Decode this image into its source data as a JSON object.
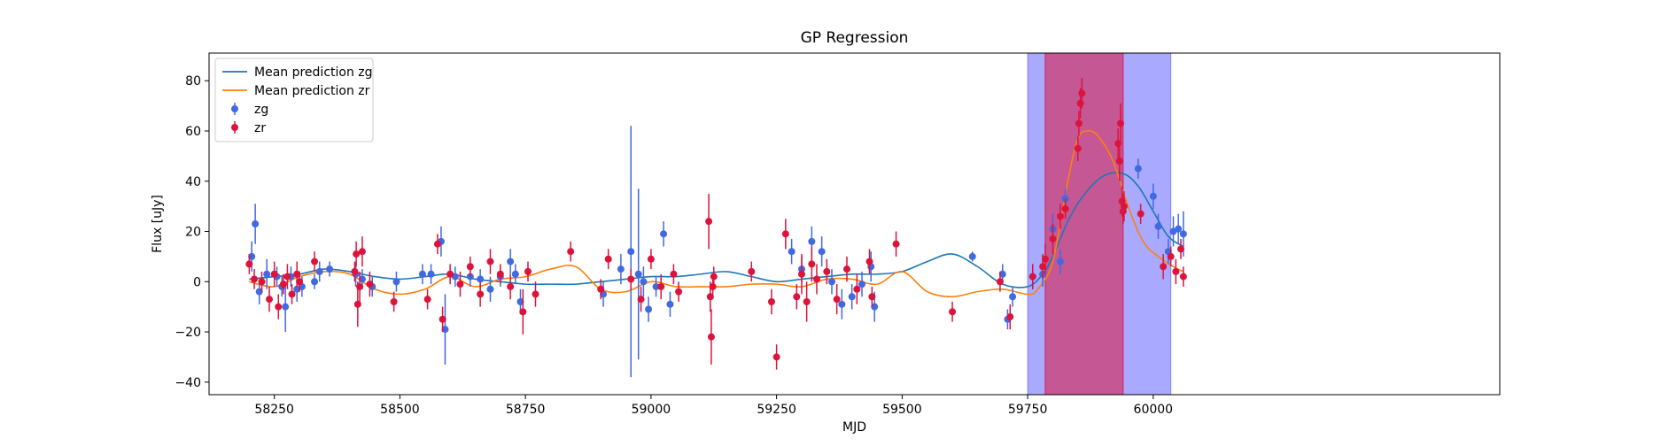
{
  "chart_data": {
    "type": "scatter",
    "title": "GP Regression",
    "xlabel": "MJD",
    "ylabel": "Flux [uJy]",
    "xlim": [
      58120,
      60690
    ],
    "ylim": [
      -45,
      91
    ],
    "xticks": [
      58250,
      58500,
      58750,
      59000,
      59250,
      59500,
      59750,
      60000
    ],
    "xtick_labels": [
      "58250",
      "58500",
      "58750",
      "59000",
      "59250",
      "59500",
      "59750",
      "60000"
    ],
    "yticks": [
      -40,
      -20,
      0,
      20,
      40,
      60,
      80
    ],
    "ytick_labels": [
      "−40",
      "−20",
      "0",
      "20",
      "40",
      "60",
      "80"
    ],
    "grid": false,
    "legend_position": "top-left",
    "legend": [
      {
        "label": "Mean prediction zg",
        "kind": "line",
        "color": "#1f77b4"
      },
      {
        "label": "Mean prediction zr",
        "kind": "line",
        "color": "#ff7f0e"
      },
      {
        "label": "zg",
        "kind": "errorbar",
        "color": "#4169e1"
      },
      {
        "label": "zr",
        "kind": "errorbar",
        "color": "#dc143c"
      }
    ],
    "shaded_regions": [
      {
        "x0": 59750,
        "x1": 60035,
        "color": "#7b7bff",
        "opacity": 0.65
      },
      {
        "x0": 59785,
        "x1": 59940,
        "color": "#dc143c",
        "opacity": 0.55
      }
    ],
    "series": [
      {
        "name": "Mean prediction zg",
        "kind": "line",
        "color": "#1f77b4",
        "x": [
          58200,
          58250,
          58300,
          58350,
          58400,
          58450,
          58500,
          58550,
          58600,
          58650,
          58700,
          58750,
          58800,
          58850,
          58900,
          58950,
          59000,
          59050,
          59100,
          59150,
          59200,
          59250,
          59300,
          59350,
          59400,
          59450,
          59500,
          59550,
          59600,
          59650,
          59700,
          59750,
          59780,
          59800,
          59830,
          59860,
          59900,
          59940,
          59970,
          60000,
          60030,
          60060
        ],
        "y": [
          1,
          2,
          3,
          5,
          4,
          2,
          1,
          2,
          3,
          1,
          0,
          -1,
          -1,
          -1,
          0,
          1,
          2,
          2,
          3,
          4,
          2,
          0,
          1,
          2,
          3,
          3,
          4,
          8,
          11,
          6,
          -1,
          -2,
          3,
          10,
          24,
          34,
          42,
          43,
          38,
          28,
          18,
          14
        ]
      },
      {
        "name": "Mean prediction zr",
        "kind": "line",
        "color": "#ff7f0e",
        "x": [
          58200,
          58250,
          58300,
          58350,
          58400,
          58450,
          58500,
          58550,
          58600,
          58650,
          58700,
          58750,
          58800,
          58850,
          58900,
          58950,
          59000,
          59050,
          59100,
          59150,
          59200,
          59250,
          59300,
          59350,
          59400,
          59450,
          59500,
          59550,
          59600,
          59650,
          59700,
          59750,
          59770,
          59800,
          59830,
          59850,
          59870,
          59890,
          59920,
          59950,
          59980,
          60010,
          60040,
          60060
        ],
        "y": [
          0,
          -2,
          2,
          4,
          3,
          -3,
          -5,
          -3,
          2,
          -2,
          1,
          2,
          5,
          6,
          -3,
          -4,
          0,
          -2,
          -2,
          -2,
          -1,
          -1,
          -2,
          1,
          1,
          -1,
          4,
          -4,
          -6,
          -4,
          -3,
          -5,
          -3,
          8,
          40,
          57,
          60,
          58,
          48,
          30,
          16,
          10,
          6,
          4
        ]
      },
      {
        "name": "zg",
        "kind": "errorbar",
        "color": "#4169e1",
        "x": [
          58205,
          58212,
          58220,
          58235,
          58255,
          58265,
          58272,
          58283,
          58295,
          58305,
          58330,
          58340,
          58360,
          58412,
          58425,
          58445,
          58493,
          58545,
          58562,
          58582,
          58590,
          58610,
          58640,
          58660,
          58680,
          58700,
          58720,
          58730,
          58740,
          58905,
          58940,
          58960,
          58975,
          58985,
          58995,
          59010,
          59025,
          59038,
          59280,
          59300,
          59320,
          59340,
          59360,
          59380,
          59400,
          59420,
          59438,
          59445,
          59640,
          59700,
          59710,
          59720,
          59760,
          59780,
          59800,
          59815,
          59825,
          59970,
          60000,
          60010,
          60030,
          60040,
          60050,
          60060
        ],
        "y": [
          10,
          23,
          -4,
          3,
          2,
          -2,
          -10,
          2,
          -3,
          -2,
          0,
          4,
          5,
          3,
          1,
          -2,
          0,
          3,
          3,
          16,
          -19,
          2,
          2,
          1,
          -3,
          2,
          8,
          3,
          -8,
          -5,
          5,
          12,
          3,
          0,
          -11,
          -2,
          19,
          -9,
          12,
          5,
          16,
          12,
          0,
          -9,
          -6,
          -1,
          6,
          -10,
          10,
          3,
          -15,
          -6,
          2,
          3,
          21,
          8,
          33,
          45,
          34,
          22,
          12,
          20,
          21,
          19
        ],
        "yerr": [
          6,
          8,
          5,
          6,
          4,
          4,
          10,
          4,
          5,
          4,
          3,
          4,
          3,
          5,
          4,
          4,
          4,
          4,
          4,
          6,
          14,
          4,
          4,
          4,
          5,
          4,
          5,
          4,
          5,
          5,
          6,
          50,
          34,
          6,
          5,
          4,
          5,
          5,
          5,
          5,
          6,
          6,
          5,
          6,
          5,
          5,
          6,
          6,
          2,
          4,
          4,
          4,
          5,
          5,
          6,
          5,
          4,
          4,
          5,
          5,
          5,
          6,
          6,
          9
        ]
      },
      {
        "name": "zr",
        "kind": "errorbar",
        "color": "#dc143c",
        "x": [
          58200,
          58210,
          58225,
          58240,
          58250,
          58258,
          58268,
          58276,
          58285,
          58295,
          58300,
          58330,
          58410,
          58413,
          58416,
          58420,
          58425,
          58440,
          58488,
          58555,
          58575,
          58585,
          58600,
          58620,
          58640,
          58660,
          58680,
          58700,
          58720,
          58745,
          58755,
          58770,
          58840,
          58900,
          58915,
          58960,
          58980,
          59000,
          59020,
          59045,
          59055,
          59115,
          59118,
          59120,
          59123,
          59125,
          59200,
          59240,
          59250,
          59268,
          59290,
          59300,
          59310,
          59320,
          59330,
          59350,
          59370,
          59390,
          59410,
          59435,
          59440,
          59488,
          59600,
          59695,
          59715,
          59760,
          59780,
          59785,
          59800,
          59815,
          59825,
          59850,
          59852,
          59855,
          59858,
          59930,
          59933,
          59935,
          59938,
          59940,
          59942,
          59975,
          60020,
          60035,
          60045,
          60055,
          60060
        ],
        "y": [
          7,
          1,
          0,
          -7,
          3,
          -10,
          -1,
          2,
          -5,
          3,
          0,
          8,
          4,
          11,
          -9,
          -2,
          12,
          -1,
          -8,
          -7,
          15,
          -15,
          3,
          -1,
          6,
          -5,
          8,
          3,
          -2,
          -12,
          4,
          -5,
          12,
          -3,
          9,
          1,
          -7,
          9,
          -2,
          3,
          -4,
          24,
          -6,
          -22,
          -2,
          2,
          4,
          -8,
          -30,
          19,
          -6,
          3,
          -8,
          7,
          1,
          4,
          -7,
          5,
          -3,
          8,
          -6,
          15,
          -12,
          0,
          -14,
          2,
          6,
          9,
          17,
          26,
          29,
          53,
          63,
          71,
          75,
          55,
          48,
          63,
          32,
          28,
          30,
          27,
          6,
          10,
          4,
          13,
          2
        ],
        "yerr": [
          4,
          4,
          4,
          5,
          5,
          5,
          4,
          5,
          4,
          5,
          4,
          4,
          4,
          5,
          9,
          6,
          6,
          5,
          4,
          4,
          4,
          5,
          4,
          5,
          4,
          5,
          5,
          4,
          5,
          9,
          4,
          5,
          4,
          4,
          4,
          4,
          5,
          4,
          5,
          4,
          4,
          11,
          6,
          11,
          5,
          4,
          4,
          5,
          5,
          6,
          5,
          8,
          8,
          7,
          6,
          5,
          6,
          5,
          6,
          5,
          4,
          5,
          4,
          4,
          5,
          5,
          5,
          6,
          6,
          5,
          4,
          5,
          5,
          6,
          6,
          6,
          8,
          8,
          6,
          5,
          6,
          4,
          5,
          4,
          5,
          4,
          4
        ]
      }
    ]
  }
}
